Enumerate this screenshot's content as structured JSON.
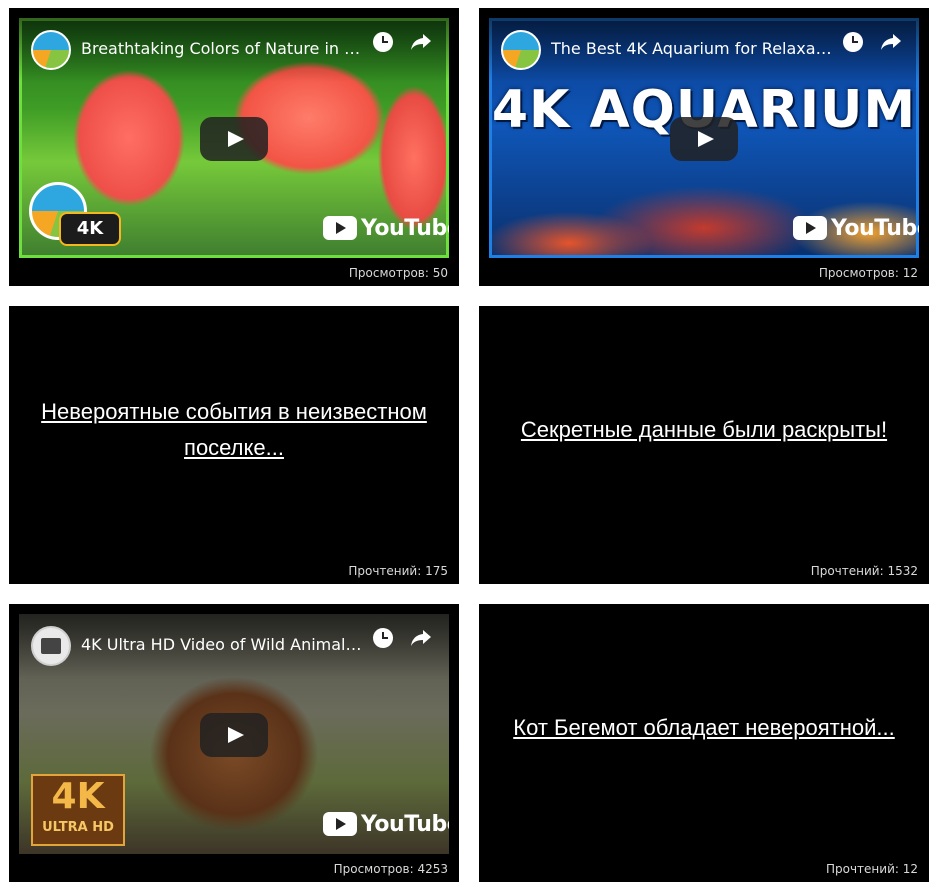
{
  "cards": [
    {
      "type": "video",
      "title": "Breathtaking Colors of Nature in 4…",
      "counter": "Просмотров: 50",
      "badge": "4K",
      "brand": "YouTube"
    },
    {
      "type": "video",
      "title": "The Best 4K Aquarium for Relaxat…",
      "overlay_text": "4K AQUARIUM",
      "counter": "Просмотров: 12",
      "brand": "YouTube"
    },
    {
      "type": "article",
      "link_text": "Невероятные события в неизвестном поселке...",
      "counter": "Прочтений: 175"
    },
    {
      "type": "article",
      "link_text": "Секретные данные были раскрыты!",
      "counter": "Прочтений: 1532"
    },
    {
      "type": "video",
      "title": "4K Ultra HD Video of Wild Animal…",
      "badge_big": "4K",
      "badge_small": "ULTRA HD",
      "counter": "Просмотров: 4253",
      "brand": "YouTube"
    },
    {
      "type": "article",
      "link_text": "Кот Бегемот обладает невероятной...",
      "counter": "Прочтений: 12"
    }
  ],
  "icons": {
    "watch_later": "clock-icon",
    "share": "share-icon",
    "play": "play-icon"
  },
  "colors": {
    "card_bg": "#000000",
    "text": "#ffffff",
    "counter": "#d9d9d9",
    "nature_border": "#6ee03c",
    "aquarium_border": "#1e7fe6"
  }
}
